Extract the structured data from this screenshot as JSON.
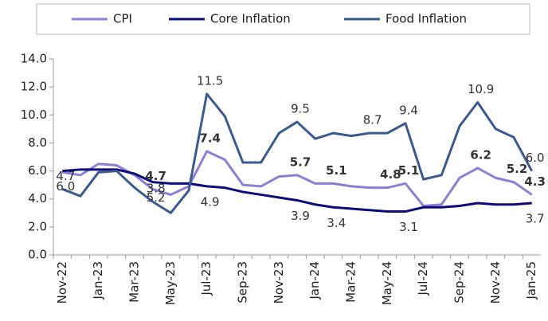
{
  "chart_data": {
    "type": "line",
    "categories": [
      "Nov-22",
      null,
      "Jan-23",
      null,
      "Mar-23",
      null,
      "May-23",
      null,
      "Jul-23",
      null,
      "Sep-23",
      null,
      "Nov-23",
      null,
      "Jan-24",
      null,
      "Mar-24",
      null,
      "May-24",
      null,
      "Jul-24",
      null,
      "Sep-24",
      null,
      "Nov-24",
      null,
      "Jan-25"
    ],
    "series": [
      {
        "name": "CPI",
        "color": "#8c80d4",
        "bold_labels": true,
        "values": [
          5.9,
          5.7,
          6.5,
          6.4,
          5.7,
          4.7,
          4.3,
          4.9,
          7.4,
          6.8,
          5.0,
          4.9,
          5.6,
          5.7,
          5.1,
          5.1,
          4.9,
          4.8,
          4.8,
          5.1,
          3.5,
          3.6,
          5.5,
          6.2,
          5.5,
          5.2,
          4.3
        ],
        "value_labels": [
          null,
          null,
          null,
          null,
          null,
          "4.7",
          null,
          null,
          "7.4",
          null,
          null,
          null,
          null,
          "5.7",
          null,
          "5.1",
          null,
          null,
          "4.8",
          "5.1",
          null,
          null,
          null,
          "6.2",
          null,
          "5.2",
          "4.3"
        ]
      },
      {
        "name": "Core Inflation",
        "color": "#0d0b7a",
        "bold_labels": false,
        "values": [
          6.0,
          6.1,
          6.1,
          6.1,
          5.8,
          5.2,
          5.1,
          5.1,
          4.9,
          4.8,
          4.5,
          4.3,
          4.1,
          3.9,
          3.6,
          3.4,
          3.3,
          3.2,
          3.1,
          3.1,
          3.4,
          3.4,
          3.5,
          3.7,
          3.6,
          3.6,
          3.7
        ],
        "value_labels": [
          "6.0",
          null,
          null,
          null,
          null,
          "5.2",
          null,
          null,
          "4.9",
          null,
          null,
          null,
          null,
          "3.9",
          null,
          "3.4",
          null,
          null,
          null,
          "3.1",
          null,
          null,
          null,
          null,
          null,
          null,
          "3.7"
        ]
      },
      {
        "name": "Food Inflation",
        "color": "#3c5a8e",
        "bold_labels": false,
        "values": [
          4.7,
          4.2,
          5.9,
          6.0,
          4.8,
          3.8,
          3.0,
          4.6,
          11.5,
          9.9,
          6.6,
          6.6,
          8.7,
          9.5,
          8.3,
          8.7,
          8.5,
          8.7,
          8.7,
          9.4,
          5.4,
          5.7,
          9.2,
          10.9,
          9.0,
          8.4,
          6.0
        ],
        "value_labels": [
          "4.7",
          null,
          null,
          null,
          null,
          "3.8",
          null,
          null,
          "11.5",
          null,
          null,
          null,
          null,
          "9.5",
          null,
          null,
          null,
          "8.7",
          null,
          "9.4",
          null,
          null,
          null,
          "10.9",
          null,
          null,
          "6.0"
        ]
      }
    ],
    "ylim": [
      0,
      14
    ],
    "yticks": [
      {
        "value": 0,
        "label": "0.0"
      },
      {
        "value": 2,
        "label": "2.0"
      },
      {
        "value": 4,
        "label": "4.0"
      },
      {
        "value": 6,
        "label": "6.0"
      },
      {
        "value": 8,
        "label": "8.0"
      },
      {
        "value": 10,
        "label": "10.0"
      },
      {
        "value": 12,
        "label": "12.0"
      },
      {
        "value": 14,
        "label": "14.0"
      }
    ],
    "legend": "top",
    "grid": false
  }
}
